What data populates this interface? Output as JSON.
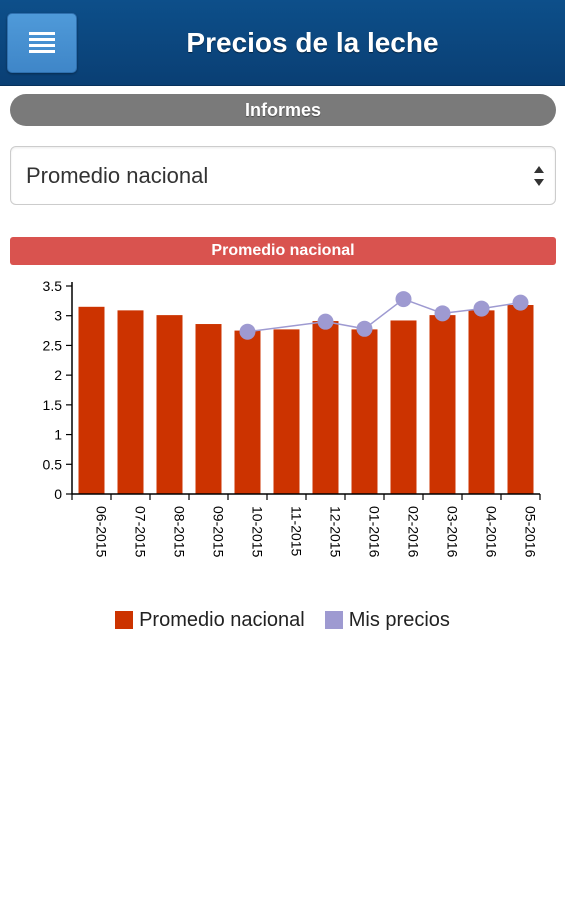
{
  "header": {
    "title": "Precios de la leche",
    "menu_icon": "menu-icon"
  },
  "section": {
    "label": "Informes"
  },
  "select": {
    "value": "Promedio nacional"
  },
  "chart_header": {
    "label": "Promedio nacional"
  },
  "colors": {
    "bar": "#cc3300",
    "line": "#9e9ad1",
    "header": "#0a4478",
    "chart_header": "#d9534f",
    "section": "#7a7a7a"
  },
  "chart_data": {
    "type": "bar",
    "categories": [
      "06-2015",
      "07-2015",
      "08-2015",
      "09-2015",
      "10-2015",
      "11-2015",
      "12-2015",
      "01-2016",
      "02-2016",
      "03-2016",
      "04-2016",
      "05-2016"
    ],
    "series": [
      {
        "name": "Promedio nacional",
        "type": "bar",
        "values": [
          3.15,
          3.09,
          3.01,
          2.86,
          2.75,
          2.77,
          2.91,
          2.77,
          2.92,
          3.01,
          3.09,
          3.18
        ]
      },
      {
        "name": "Mis precios",
        "type": "line",
        "values": [
          null,
          null,
          null,
          null,
          2.73,
          null,
          2.9,
          2.78,
          3.28,
          3.04,
          3.12,
          3.22
        ]
      }
    ],
    "yticks": [
      0,
      0.5,
      1,
      1.5,
      2,
      2.5,
      3,
      3.5
    ],
    "ylim": [
      0,
      3.5
    ],
    "legend_position": "bottom"
  }
}
